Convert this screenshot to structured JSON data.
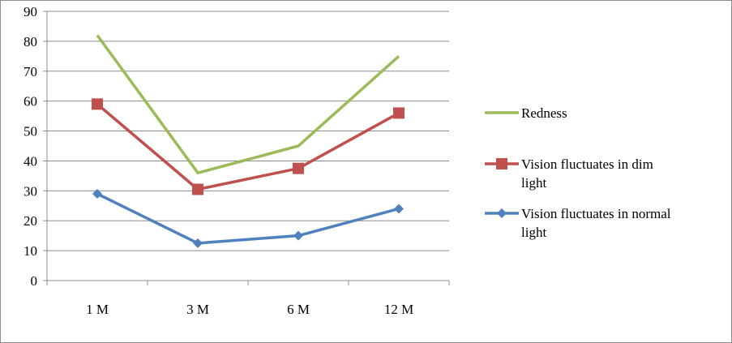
{
  "chart_data": {
    "type": "line",
    "categories": [
      "1 M",
      "3 M",
      "6 M",
      "12 M"
    ],
    "ylim": [
      0,
      90
    ],
    "yticks": [
      0,
      10,
      20,
      30,
      40,
      50,
      60,
      70,
      80,
      90
    ],
    "grid": true,
    "legend_position": "right",
    "series": [
      {
        "name": "Redness",
        "values": [
          82,
          36,
          45,
          75
        ],
        "color": "#9bbb59",
        "marker": "none",
        "legend_lines": [
          "Redness"
        ]
      },
      {
        "name": "Vision fluctuates in dim light",
        "values": [
          59,
          30.5,
          37.5,
          56
        ],
        "color": "#c0504d",
        "marker": "square",
        "legend_lines": [
          "Vision fluctuates in dim",
          "light"
        ]
      },
      {
        "name": "Vision fluctuates in normal light",
        "values": [
          29,
          12.5,
          15,
          24
        ],
        "color": "#4f81bd",
        "marker": "diamond",
        "legend_lines": [
          "Vision fluctuates in normal",
          "light"
        ]
      }
    ]
  }
}
